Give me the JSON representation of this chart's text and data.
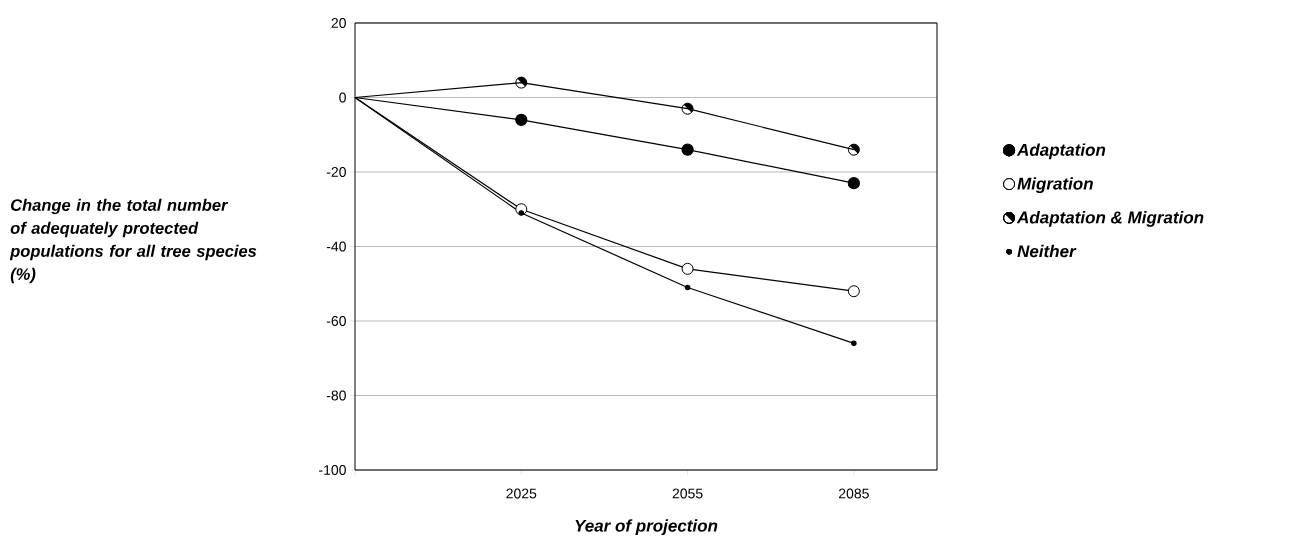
{
  "chart_data": {
    "type": "line",
    "xlabel": "Year of projection",
    "ylabel": "Change in the total number of adequately protected populations for all tree species (%)",
    "categories": [
      null,
      "2025",
      "2055",
      "2085"
    ],
    "ylim": [
      -100,
      20
    ],
    "yticks": [
      -100,
      -80,
      -60,
      -40,
      -20,
      0,
      20
    ],
    "grid": "y",
    "legend": "right",
    "line_style": "solid",
    "series": [
      {
        "name": "Adaptation",
        "color": "#000000",
        "marker": "circle",
        "values": [
          0,
          -6,
          -14,
          -23
        ]
      },
      {
        "name": "Migration",
        "color": "#000000",
        "marker": "circle-open",
        "values": [
          0,
          -30,
          -46,
          -52
        ]
      },
      {
        "name": "Adaptation & Migration",
        "color": "#000000",
        "marker": "circle-half",
        "values": [
          0,
          4,
          -3,
          -14
        ]
      },
      {
        "name": "Neither",
        "color": "#000000",
        "marker": "dot",
        "values": [
          0,
          -31,
          -51,
          -66
        ]
      }
    ]
  }
}
